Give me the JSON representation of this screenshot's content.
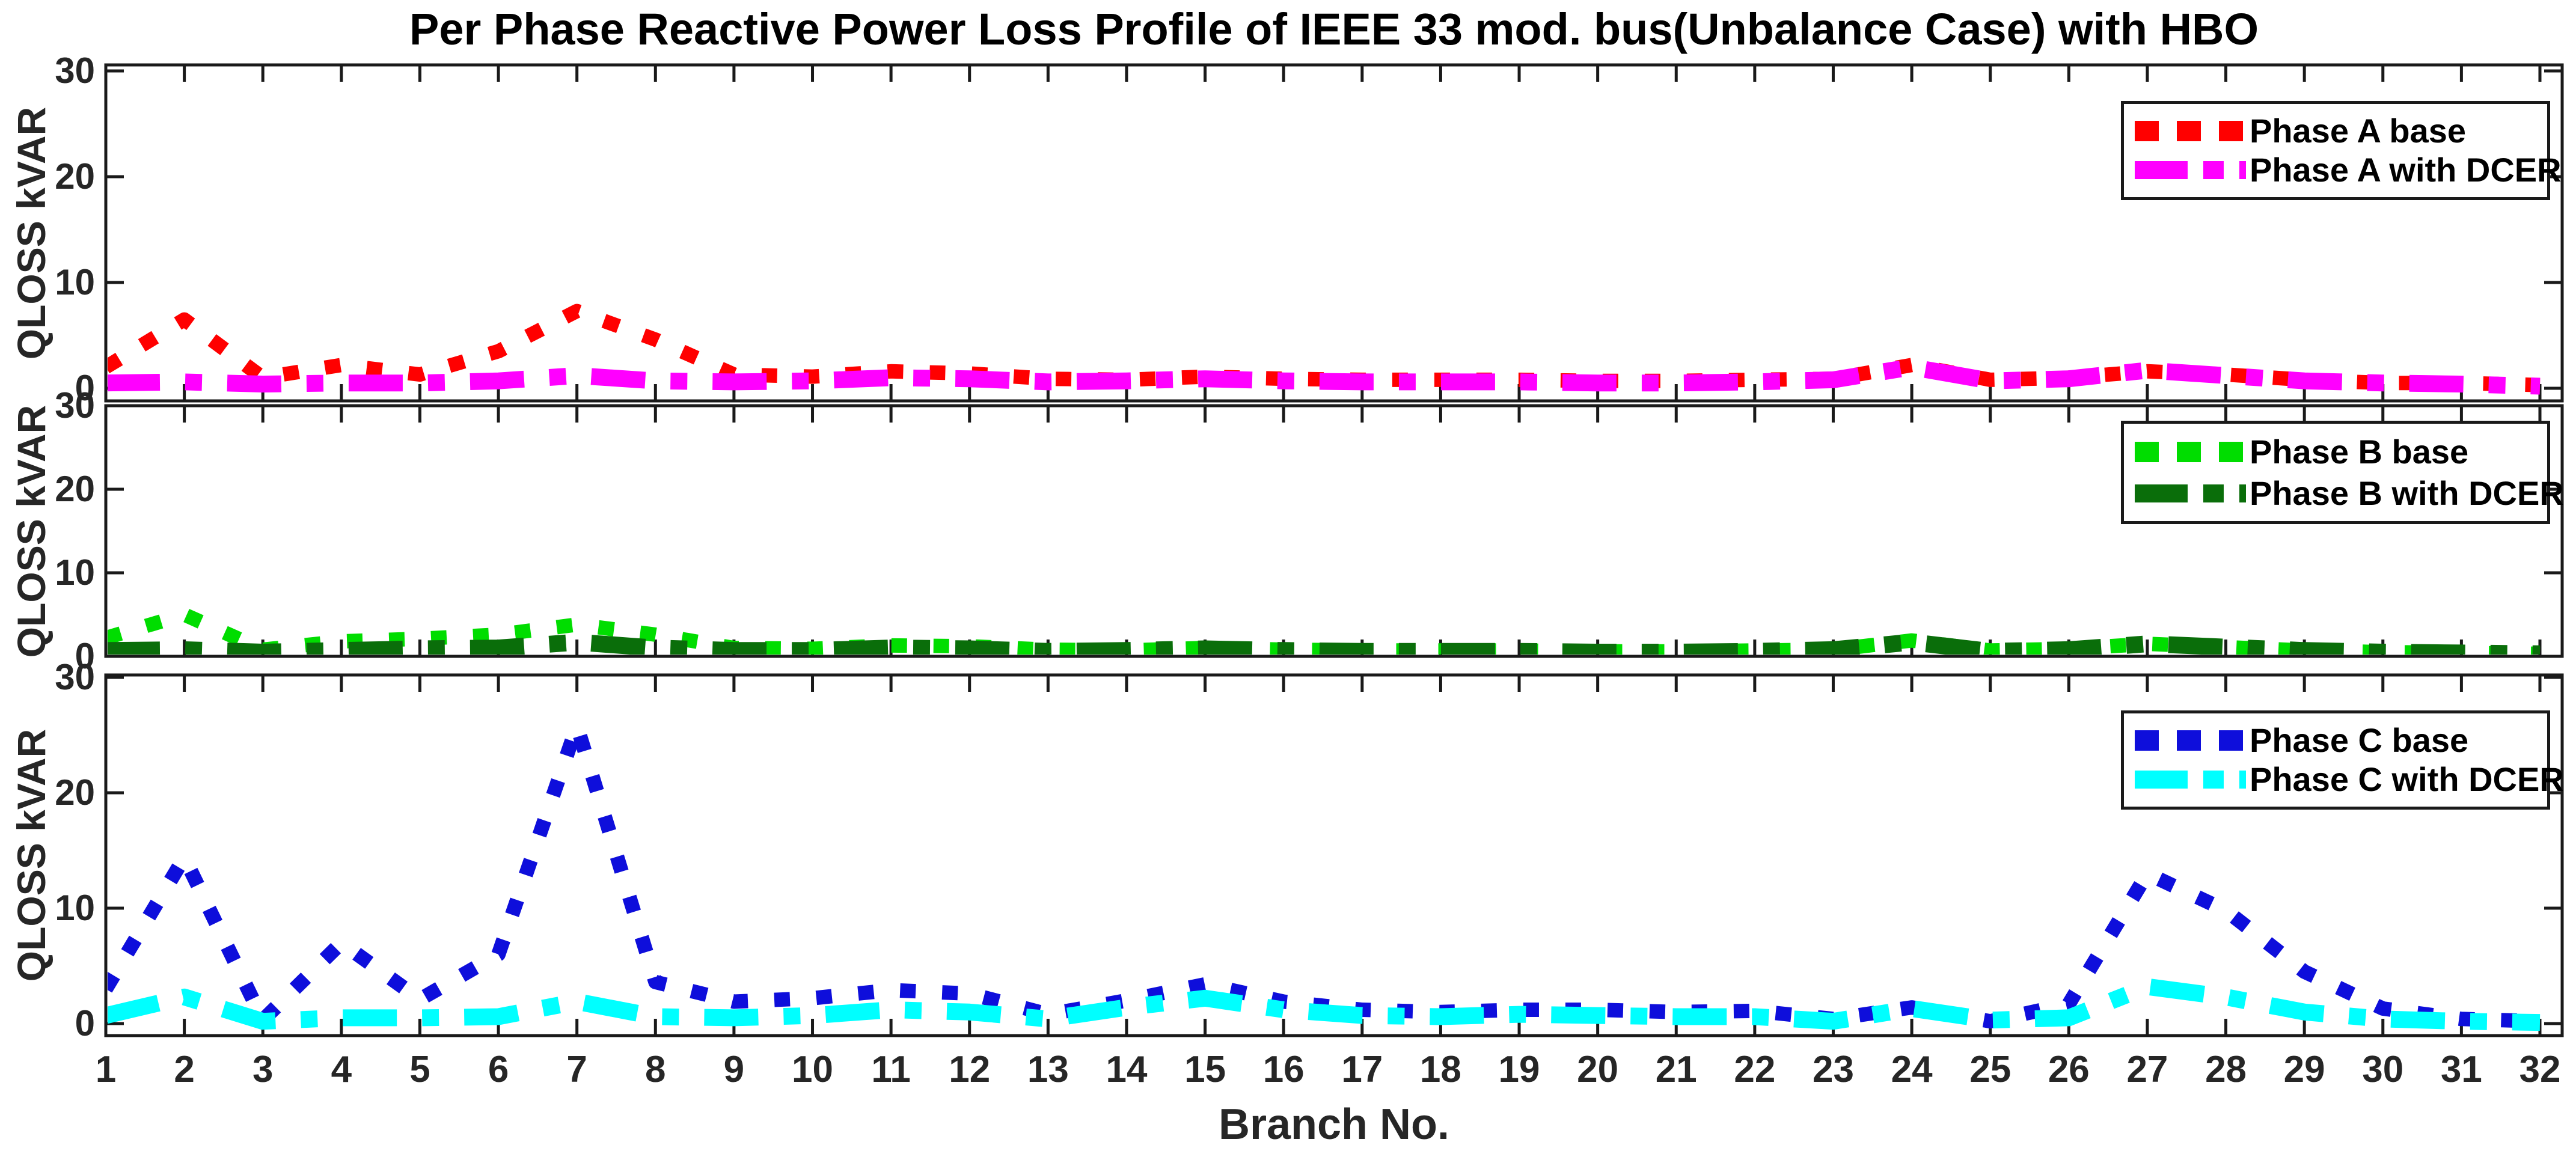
{
  "title": "Per Phase Reactive Power Loss Profile of IEEE 33 mod. bus(Unbalance Case) with HBO",
  "xlabel": "Branch No.",
  "axis_color": "#262626",
  "chart_data": [
    {
      "type": "line",
      "phase": "A",
      "ylabel": "QLOSS kVAR",
      "yticks": [
        0,
        10,
        20,
        30
      ],
      "ylim": [
        0,
        30
      ],
      "grid": false,
      "legend_position": "top-right",
      "x": [
        1,
        2,
        3,
        4,
        5,
        6,
        7,
        8,
        9,
        10,
        11,
        12,
        13,
        14,
        15,
        16,
        17,
        18,
        19,
        20,
        21,
        22,
        23,
        24,
        25,
        26,
        27,
        28,
        29,
        30,
        31,
        32
      ],
      "series": [
        {
          "name": "Phase A base",
          "color": "#FF0000",
          "style": "dotted",
          "values": [
            2.0,
            6.5,
            1.0,
            2.2,
            1.3,
            3.5,
            7.3,
            4.6,
            1.3,
            1.1,
            1.6,
            1.4,
            0.9,
            0.8,
            1.1,
            0.9,
            0.8,
            0.8,
            0.8,
            0.7,
            0.7,
            0.8,
            0.9,
            2.2,
            0.8,
            1.0,
            1.6,
            1.3,
            0.8,
            0.5,
            0.5,
            0.3
          ]
        },
        {
          "name": "Phase A with DCER",
          "color": "#FF00FF",
          "style": "dash-dot",
          "values": [
            0.5,
            0.6,
            0.4,
            0.5,
            0.5,
            0.7,
            1.2,
            0.7,
            0.6,
            0.7,
            1.0,
            0.9,
            0.6,
            0.7,
            0.9,
            0.7,
            0.6,
            0.6,
            0.6,
            0.5,
            0.5,
            0.6,
            0.8,
            2.0,
            0.7,
            0.9,
            1.7,
            1.2,
            0.7,
            0.5,
            0.4,
            0.2
          ]
        }
      ]
    },
    {
      "type": "line",
      "phase": "B",
      "ylabel": "QLOSS kVAR",
      "yticks": [
        0,
        10,
        20,
        30
      ],
      "ylim": [
        0,
        30
      ],
      "grid": false,
      "legend_position": "top-right",
      "x": [
        1,
        2,
        3,
        4,
        5,
        6,
        7,
        8,
        9,
        10,
        11,
        12,
        13,
        14,
        15,
        16,
        17,
        18,
        19,
        20,
        21,
        22,
        23,
        24,
        25,
        26,
        27,
        28,
        29,
        30,
        31,
        32
      ],
      "series": [
        {
          "name": "Phase B base",
          "color": "#00DD00",
          "style": "dotted",
          "values": [
            2.2,
            5.0,
            0.8,
            1.8,
            2.1,
            2.6,
            3.8,
            2.6,
            1.0,
            0.9,
            1.3,
            1.2,
            0.8,
            0.7,
            1.0,
            0.8,
            0.7,
            0.7,
            0.7,
            0.6,
            0.6,
            0.7,
            0.8,
            1.9,
            0.7,
            0.9,
            1.5,
            1.1,
            0.7,
            0.5,
            0.4,
            0.3
          ]
        },
        {
          "name": "Phase B with DCER",
          "color": "#0A6E0A",
          "style": "dash-dot",
          "values": [
            0.7,
            0.8,
            0.5,
            0.7,
            0.9,
            1.0,
            1.7,
            1.0,
            0.7,
            0.7,
            1.0,
            0.9,
            0.6,
            0.7,
            0.9,
            0.7,
            0.6,
            0.6,
            0.6,
            0.5,
            0.5,
            0.6,
            0.8,
            1.7,
            0.6,
            0.8,
            1.5,
            1.1,
            0.7,
            0.5,
            0.4,
            0.3
          ]
        }
      ]
    },
    {
      "type": "line",
      "phase": "C",
      "ylabel": "QLOSS kVAR",
      "yticks": [
        0,
        10,
        20,
        30
      ],
      "ylim": [
        0,
        30
      ],
      "grid": false,
      "legend_position": "top-right",
      "x": [
        1,
        2,
        3,
        4,
        5,
        6,
        7,
        8,
        9,
        10,
        11,
        12,
        13,
        14,
        15,
        16,
        17,
        18,
        19,
        20,
        21,
        22,
        23,
        24,
        25,
        26,
        27,
        28,
        29,
        30,
        31,
        32
      ],
      "series": [
        {
          "name": "Phase C base",
          "color": "#0E0EDB",
          "style": "dotted",
          "values": [
            3.0,
            14.4,
            0.3,
            7.0,
            2.1,
            6.0,
            25.8,
            3.6,
            1.9,
            2.2,
            2.9,
            2.6,
            0.8,
            2.0,
            3.4,
            1.9,
            1.2,
            1.0,
            1.2,
            1.2,
            1.0,
            1.1,
            0.4,
            1.4,
            0.2,
            1.7,
            13.0,
            9.8,
            4.5,
            1.3,
            0.4,
            0.2
          ]
        },
        {
          "name": "Phase C with DCER",
          "color": "#00FFFF",
          "style": "dash-dot",
          "values": [
            0.7,
            2.3,
            0.2,
            0.5,
            0.5,
            0.6,
            1.9,
            0.6,
            0.5,
            0.7,
            1.2,
            1.0,
            0.4,
            1.4,
            2.2,
            1.2,
            0.7,
            0.6,
            0.8,
            0.7,
            0.6,
            0.6,
            0.2,
            1.3,
            0.3,
            0.5,
            3.2,
            2.3,
            1.0,
            0.4,
            0.2,
            0.1
          ]
        }
      ]
    }
  ]
}
